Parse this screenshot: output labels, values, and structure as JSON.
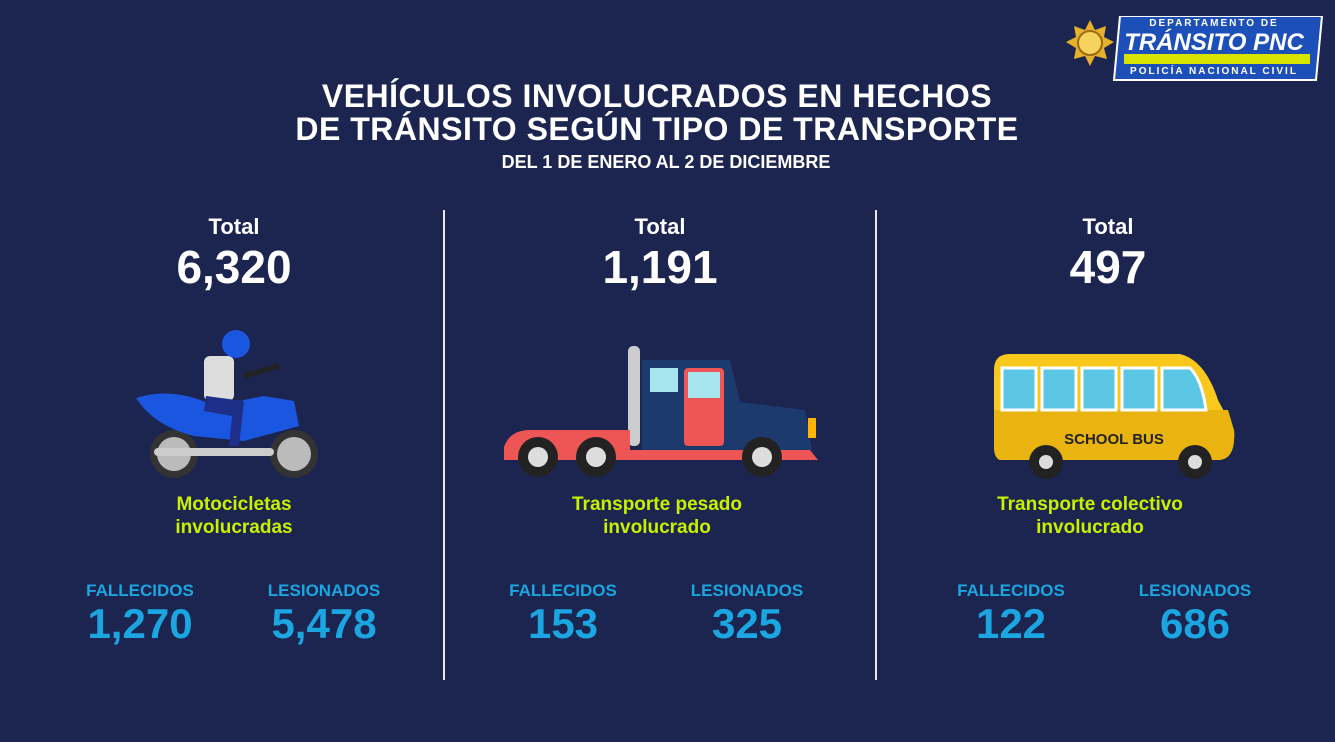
{
  "logo": {
    "line1": "DEPARTAMENTO DE",
    "line2": "TRÁNSITO PNC",
    "line3": "POLICÍA NACIONAL CIVIL"
  },
  "header": {
    "title_line1": "VEHÍCULOS INVOLUCRADOS EN HECHOS",
    "title_line2": "DE TRÁNSITO SEGÚN TIPO DE TRANSPORTE",
    "subtitle": "DEL 1 DE ENERO AL 2 DE DICIEMBRE"
  },
  "panels": [
    {
      "total_label": "Total",
      "total": "6,320",
      "caption_line1": "Motocicletas",
      "caption_line2": "involucradas",
      "stats": [
        {
          "label": "FALLECIDOS",
          "value": "1,270"
        },
        {
          "label": "LESIONADOS",
          "value": "5,478"
        }
      ]
    },
    {
      "total_label": "Total",
      "total": "1,191",
      "caption_line1": "Transporte pesado",
      "caption_line2": "involucrado",
      "stats": [
        {
          "label": "FALLECIDOS",
          "value": "153"
        },
        {
          "label": "LESIONADOS",
          "value": "325"
        }
      ]
    },
    {
      "total_label": "Total",
      "total": "497",
      "caption_line1": "Transporte colectivo",
      "caption_line2": "involucrado",
      "bus_sign": "SCHOOL BUS",
      "stats": [
        {
          "label": "FALLECIDOS",
          "value": "122"
        },
        {
          "label": "LESIONADOS",
          "value": "686"
        }
      ]
    }
  ]
}
